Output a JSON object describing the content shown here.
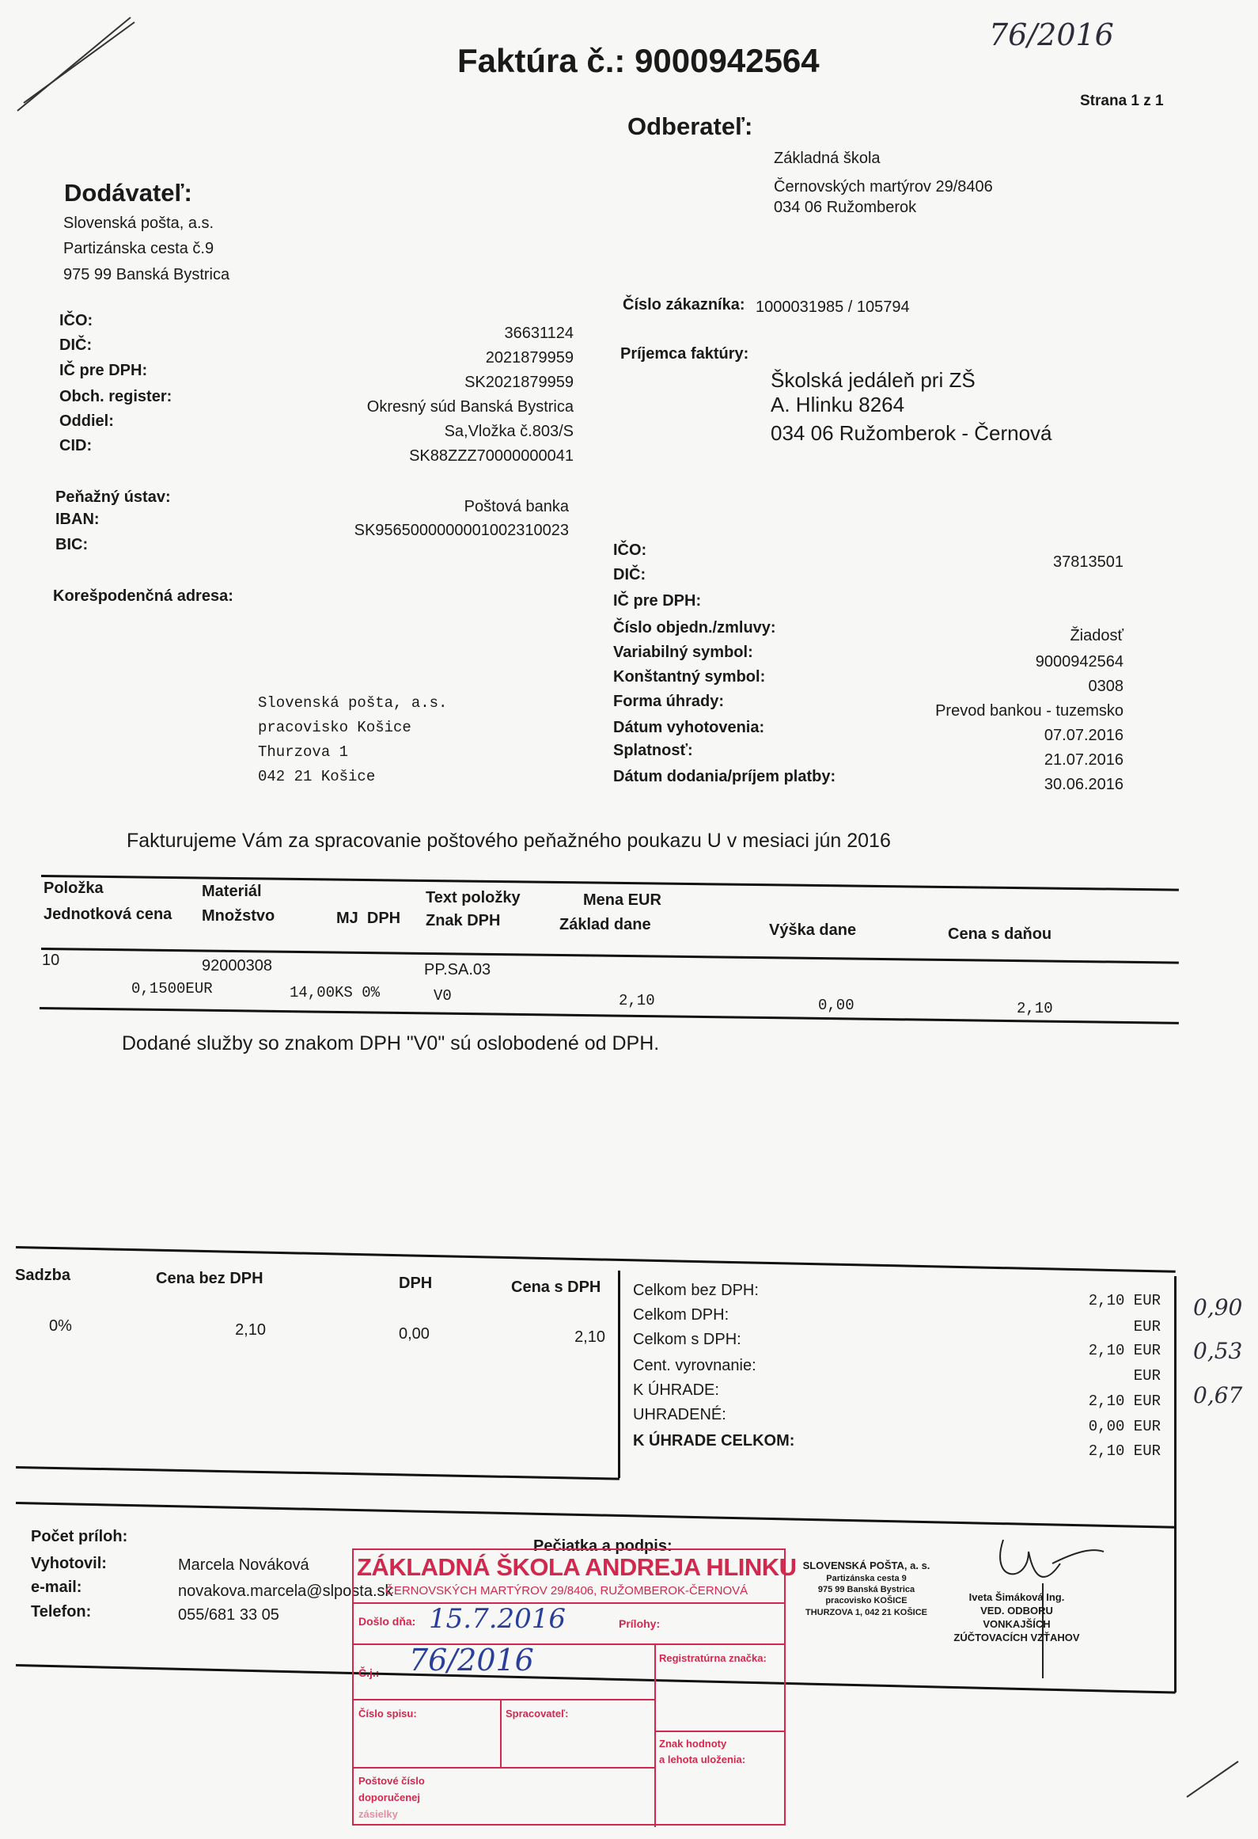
{
  "header": {
    "title": "Faktúra č.: 9000942564",
    "handwritten_ref": "76/2016",
    "page": "Strana 1 z 1"
  },
  "customer": {
    "heading": "Odberateľ:",
    "lines": [
      "Základná škola",
      "Černovských martýrov  29/8406",
      "034 06 Ružomberok"
    ],
    "customer_no_label": "Číslo zákazníka:",
    "customer_no": "1000031985 / 105794",
    "recipient_label": "Príjemca faktúry:",
    "recipient_lines": [
      "Školská jedáleň pri ZŠ",
      "A. Hlinku 8264",
      "034 06 Ružomberok - Černová"
    ],
    "fields": [
      {
        "label": "IČO:",
        "value": "37813501"
      },
      {
        "label": "DIČ:",
        "value": ""
      },
      {
        "label": "IČ pre DPH:",
        "value": ""
      },
      {
        "label": "Číslo objedn./zmluvy:",
        "value": "Žiadosť"
      },
      {
        "label": "Variabilný symbol:",
        "value": "9000942564"
      },
      {
        "label": "Konštantný symbol:",
        "value": "0308"
      },
      {
        "label": "Forma úhrady:",
        "value": "Prevod bankou - tuzemsko"
      },
      {
        "label": "Dátum vyhotovenia:",
        "value": "07.07.2016"
      },
      {
        "label": "Splatnosť:",
        "value": "21.07.2016"
      },
      {
        "label": "Dátum dodania/príjem platby:",
        "value": "30.06.2016"
      }
    ]
  },
  "supplier": {
    "heading": "Dodávateľ:",
    "lines": [
      "Slovenská pošta, a.s.",
      "Partizánska cesta č.9",
      "975 99  Banská Bystrica"
    ],
    "fields": [
      {
        "label": "IČO:",
        "value": "36631124"
      },
      {
        "label": "DIČ:",
        "value": "2021879959"
      },
      {
        "label": "IČ pre DPH:",
        "value": "SK2021879959"
      },
      {
        "label": "Obch. register:",
        "value": "Okresný súd Banská Bystrica"
      },
      {
        "label": "Oddiel:",
        "value": "Sa,Vložka č.803/S"
      },
      {
        "label": "CID:",
        "value": "SK88ZZZ70000000041"
      }
    ],
    "bank": [
      {
        "label": "Peňažný ústav:",
        "value": "Poštová banka"
      },
      {
        "label": "IBAN:",
        "value": "SK9565000000001002310023"
      },
      {
        "label": "BIC:",
        "value": ""
      }
    ],
    "corr_label": "Korešpodenčná adresa:",
    "corr_lines": [
      "Slovenská pošta, a.s.",
      "pracovisko Košice",
      "Thurzova 1",
      "042 21  Košice"
    ]
  },
  "intro": "Fakturujeme Vám za spracovanie poštového peňažného poukazu U v  mesiaci jún 2016",
  "items_table": {
    "headers": {
      "polozka": "Položka",
      "jedn_cena": "Jednotková cena",
      "material": "Materiál",
      "mnozstvo": "Množstvo",
      "mj_dph": "MJ  DPH",
      "text": "Text položky",
      "znak": "Znak DPH",
      "mena": "Mena EUR",
      "zaklad": "Základ dane",
      "vyska": "Výška dane",
      "cena": "Cena s daňou"
    },
    "rows": [
      {
        "polozka": "10",
        "material": "92000308",
        "text": "PP.SA.03",
        "jedn_cena": "0,1500EUR",
        "mnozstvo": "14,00KS 0%",
        "znak": "V0",
        "zaklad": "2,10",
        "vyska": "0,00",
        "cena": "2,10"
      }
    ]
  },
  "note": "Dodané služby so znakom DPH \"V0\" sú oslobodené od DPH.",
  "vat_summary": {
    "headers": [
      "Sadzba",
      "Cena bez DPH",
      "DPH",
      "Cena s DPH"
    ],
    "row": [
      "0%",
      "2,10",
      "0,00",
      "2,10"
    ]
  },
  "totals": [
    {
      "label": "Celkom bez DPH:",
      "value": "2,10 EUR"
    },
    {
      "label": "Celkom DPH:",
      "value": "EUR"
    },
    {
      "label": "Celkom s DPH:",
      "value": "2,10 EUR"
    },
    {
      "label": "Cent. vyrovnanie:",
      "value": "EUR"
    },
    {
      "label": "K ÚHRADE:",
      "value": "2,10 EUR"
    },
    {
      "label": "UHRADENÉ:",
      "value": "0,00 EUR"
    },
    {
      "label": "K ÚHRADE CELKOM:",
      "value": "2,10 EUR"
    }
  ],
  "margin_notes": [
    "0,90",
    "0,53",
    "0,67"
  ],
  "footer": {
    "attachments_label": "Počet príloh:",
    "created_by_label": "Vyhotovil:",
    "created_by": "Marcela Nováková",
    "email_label": "e-mail:",
    "email": "novakova.marcela@slposta.sk",
    "phone_label": "Telefon:",
    "phone": "055/681 33 05",
    "stamp_sign_label": "Pečiatka a podpis:"
  },
  "receipt_stamp": {
    "school": "ZÁKLADNÁ ŠKOLA ANDREJA HLINKU",
    "address": "ČERNOVSKÝCH MARTÝROV 29/8406, RUŽOMBEROK-ČERNOVÁ",
    "received_label": "Došlo dňa:",
    "received_date": "15.7.2016",
    "attachments_label": "Prílohy:",
    "ref_label": "Č.j.:",
    "ref_no": "76/2016",
    "registry_label": "Registratúrna značka:",
    "file_no_label": "Číslo spisu:",
    "processor_label": "Spracovateľ:",
    "value_label_1": "Znak hodnoty",
    "value_label_2": "a lehota uloženia:",
    "postal_1": "Poštové číslo",
    "postal_2": "doporučenej",
    "postal_3": "zásielky"
  },
  "post_stamp": [
    "SLOVENSKÁ POŠTA, a. s.",
    "Partizánska cesta 9",
    "975 99 Banská Bystrica",
    "pracovisko KOŠICE",
    "THURZOVA 1, 042 21 KOŠICE"
  ],
  "signatory": [
    "Iveta Šimáková Ing.",
    "VED. ODBORU VONKAJŠÍCH",
    "ZÚČTOVACÍCH VZŤAHOV"
  ]
}
